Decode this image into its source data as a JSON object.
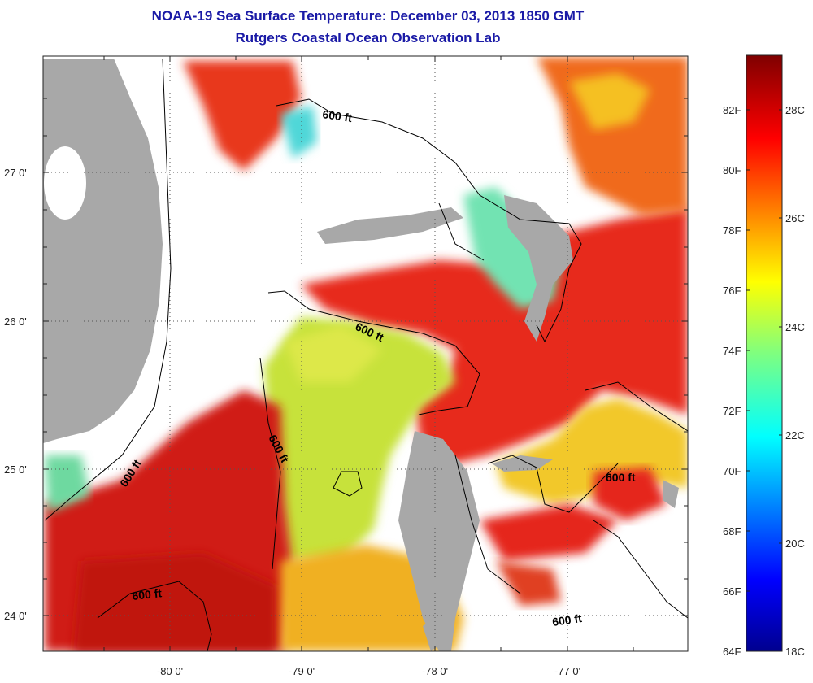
{
  "title": "NOAA-19 Sea Surface Temperature:  December 03, 2013 1850 GMT",
  "subtitle": "Rutgers Coastal Ocean Observation Lab",
  "lat_ticks": [
    "27 0'",
    "26 0'",
    "25 0'",
    "24 0'"
  ],
  "lon_ticks": [
    "-80 0'",
    "-79 0'",
    "-78 0'",
    "-77 0'"
  ],
  "contour_label": "600 ft",
  "colorbar": {
    "fahrenheit": [
      "82F",
      "80F",
      "78F",
      "76F",
      "74F",
      "72F",
      "70F",
      "68F",
      "66F",
      "64F"
    ],
    "celsius": [
      "28C",
      "26C",
      "24C",
      "22C",
      "20C",
      "18C"
    ]
  },
  "colors": {
    "title": "#1a1aa6",
    "land": "#a8a8a8",
    "warm": "#e8261c",
    "mid": "#d9e23a",
    "cool": "#6ce3b8"
  }
}
